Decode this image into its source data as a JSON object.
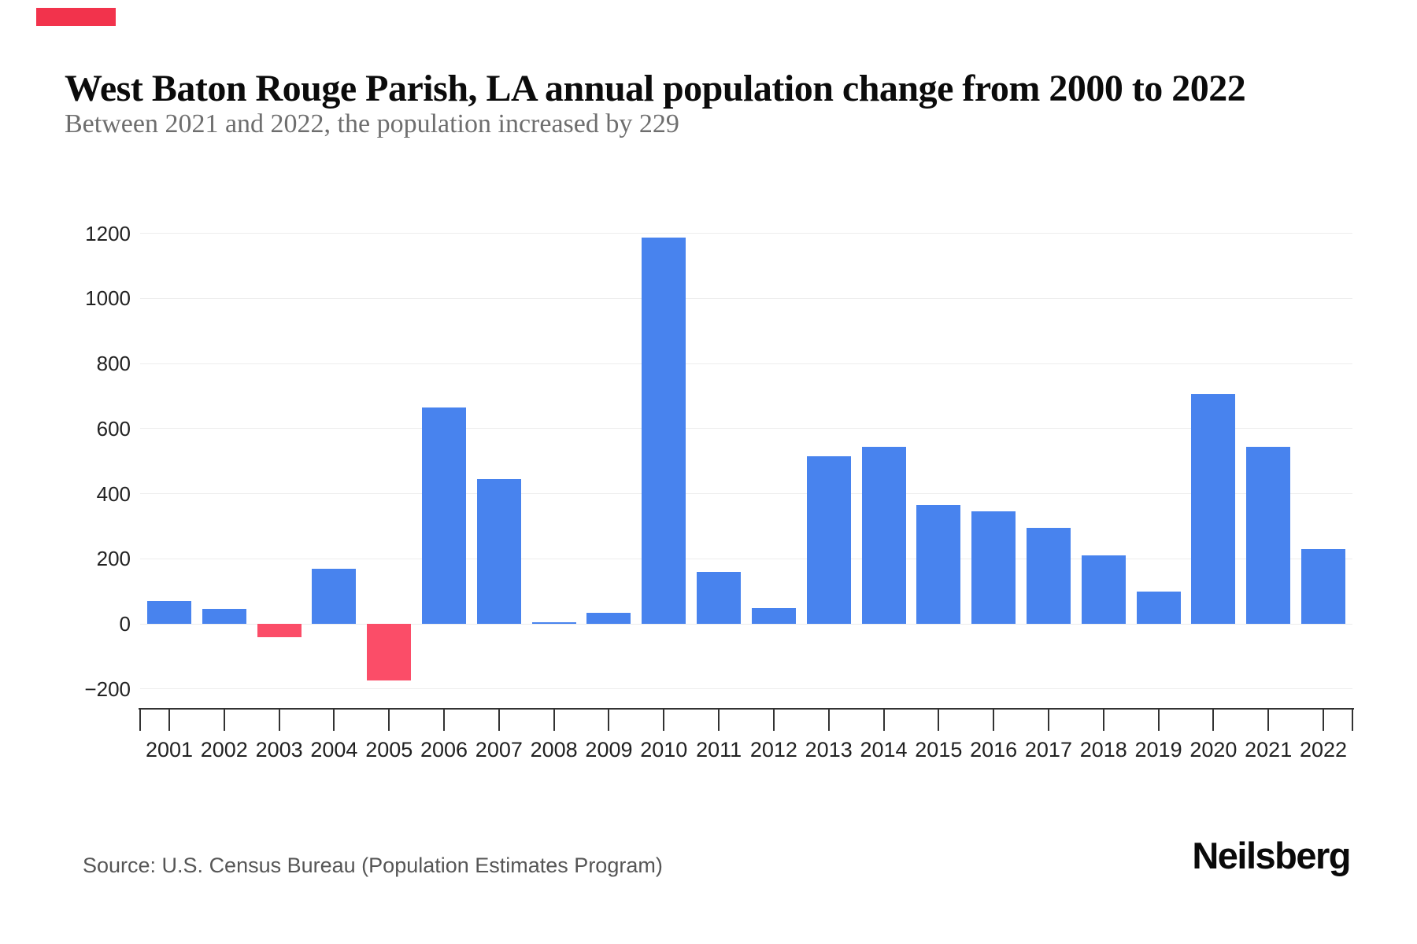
{
  "header": {
    "title": "West Baton Rouge Parish, LA annual population change from 2000 to 2022",
    "subtitle": "Between 2021 and 2022, the population increased by 229"
  },
  "chart_data": {
    "type": "bar",
    "title": "West Baton Rouge Parish, LA annual population change from 2000 to 2022",
    "subtitle": "Between 2021 and 2022, the population increased by 229",
    "categories": [
      "2001",
      "2002",
      "2003",
      "2004",
      "2005",
      "2006",
      "2007",
      "2008",
      "2009",
      "2010",
      "2011",
      "2012",
      "2013",
      "2014",
      "2015",
      "2016",
      "2017",
      "2018",
      "2019",
      "2020",
      "2021",
      "2022"
    ],
    "values": [
      70,
      45,
      -40,
      170,
      -175,
      665,
      445,
      3,
      35,
      1188,
      160,
      48,
      515,
      545,
      365,
      345,
      295,
      210,
      100,
      705,
      545,
      229
    ],
    "xlabel": "",
    "ylabel": "",
    "yticks": [
      -200,
      0,
      200,
      400,
      600,
      800,
      1000,
      1200
    ],
    "ylim": [
      -261,
      1313
    ],
    "grid": "horizontal",
    "legend": "none",
    "positive_color": "#4883EE",
    "negative_color": "#FB4D68",
    "axis_color": "#333333",
    "gridline_color": "#EDEDED",
    "tick_label_color": "#222222"
  },
  "footer": {
    "source": "Source: U.S. Census Bureau (Population Estimates Program)",
    "brand": "Neilsberg"
  },
  "colors": {
    "brand_accent": "#F2334C",
    "title_color": "#0B0B0B",
    "subtitle_color": "#6E6E6E"
  }
}
